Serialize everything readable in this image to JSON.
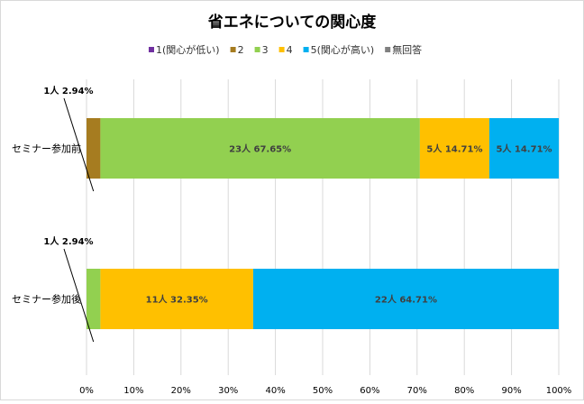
{
  "chart_data": {
    "type": "bar",
    "orientation": "horizontal",
    "stacked": "percent",
    "title": "省エネについての関心度",
    "categories": [
      "セミナー参加前",
      "セミナー参加後"
    ],
    "series": [
      {
        "name": "1(関心が低い)",
        "color": "#7030A0",
        "counts": [
          0,
          0
        ],
        "values": [
          0,
          0
        ],
        "labels": [
          "",
          ""
        ]
      },
      {
        "name": "2",
        "color": "#A67C20",
        "counts": [
          1,
          0
        ],
        "values": [
          2.94,
          0
        ],
        "labels": [
          "1人 2.94%",
          ""
        ]
      },
      {
        "name": "3",
        "color": "#92D050",
        "counts": [
          23,
          1
        ],
        "values": [
          67.65,
          2.94
        ],
        "labels": [
          "23人 67.65%",
          "1人 2.94%"
        ]
      },
      {
        "name": "4",
        "color": "#FFC000",
        "counts": [
          5,
          11
        ],
        "values": [
          14.71,
          32.35
        ],
        "labels": [
          "5人 14.71%",
          "11人 32.35%"
        ]
      },
      {
        "name": "5(関心が高い)",
        "color": "#00B0F0",
        "counts": [
          5,
          22
        ],
        "values": [
          14.71,
          64.71
        ],
        "labels": [
          "5人 14.71%",
          "22人 64.71%"
        ]
      },
      {
        "name": "無回答",
        "color": "#808080",
        "counts": [
          0,
          0
        ],
        "values": [
          0,
          0
        ],
        "labels": [
          "",
          ""
        ]
      }
    ],
    "xlim": [
      0,
      100
    ],
    "xticks": [
      "0%",
      "10%",
      "20%",
      "30%",
      "40%",
      "50%",
      "60%",
      "70%",
      "80%",
      "90%",
      "100%"
    ],
    "grid": true,
    "legend": "top"
  }
}
